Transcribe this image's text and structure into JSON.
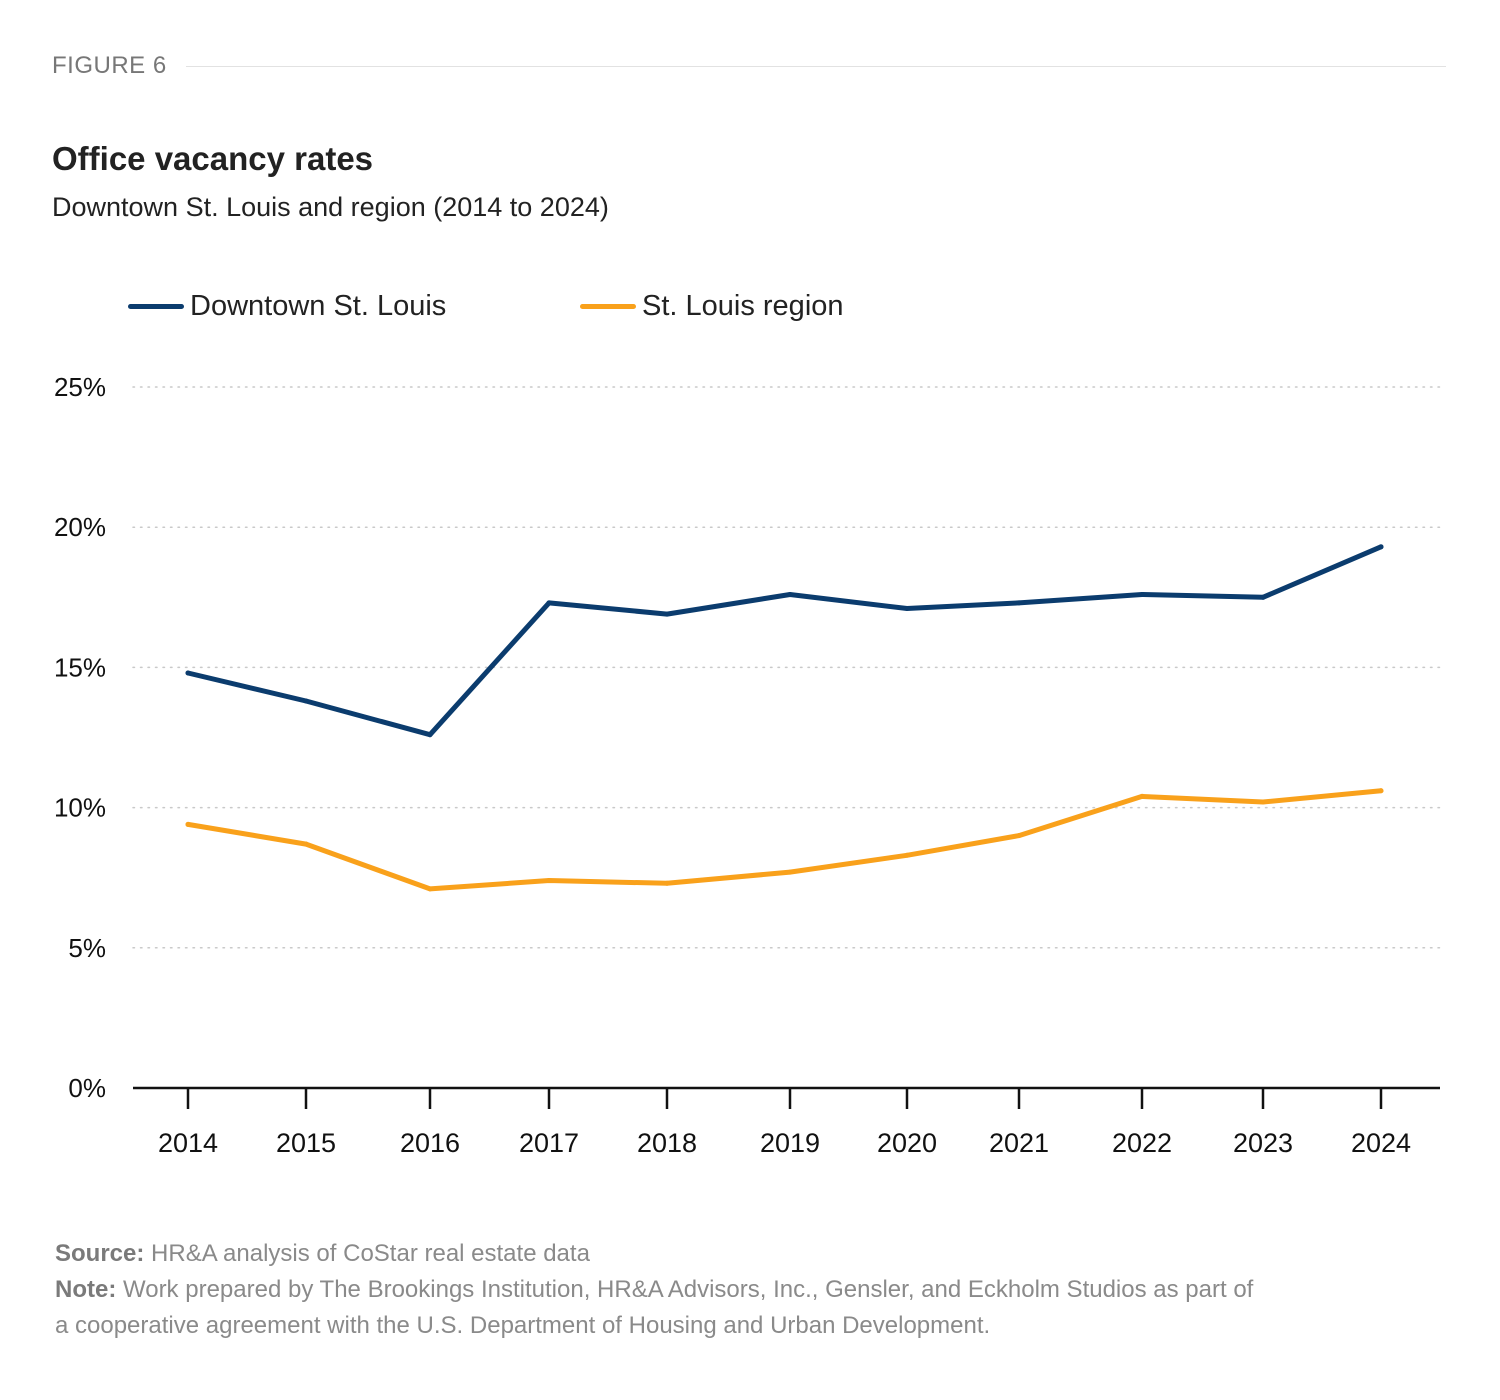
{
  "figure": {
    "label": "FIGURE 6"
  },
  "header": {
    "title": "Office vacancy rates",
    "subtitle": "Downtown St. Louis and region (2014 to 2024)"
  },
  "footer": {
    "source_label": "Source:",
    "source_text": "HR&A analysis of CoStar real estate data",
    "note_label": "Note:",
    "note_text_1": "Work prepared by The Brookings Institution, HR&A Advisors, Inc., Gensler, and Eckholm Studios as part of",
    "note_text_2": "a cooperative agreement with the U.S. Department of Housing and Urban Development."
  },
  "chart_data": {
    "type": "line",
    "title": "Office vacancy rates",
    "subtitle": "Downtown St. Louis and region (2014 to 2024)",
    "xlabel": "",
    "ylabel": "",
    "x": [
      "2014",
      "2015",
      "2016",
      "2017",
      "2018",
      "2019",
      "2020",
      "2021",
      "2022",
      "2023",
      "2024"
    ],
    "ylim": [
      0,
      25
    ],
    "yticks": [
      0,
      5,
      10,
      15,
      20,
      25
    ],
    "ytick_labels": [
      "0%",
      "5%",
      "10%",
      "15%",
      "20%",
      "25%"
    ],
    "grid": true,
    "legend_position": "top-left",
    "series": [
      {
        "name": "Downtown St. Louis",
        "color": "#0b3c6e",
        "values": [
          14.8,
          13.8,
          12.6,
          17.3,
          16.9,
          17.6,
          17.1,
          17.3,
          17.6,
          17.5,
          19.3
        ]
      },
      {
        "name": "St. Louis region",
        "color": "#f9a11b",
        "values": [
          9.4,
          8.7,
          7.1,
          7.4,
          7.3,
          7.7,
          8.3,
          9.0,
          10.4,
          10.2,
          10.6
        ]
      }
    ]
  }
}
